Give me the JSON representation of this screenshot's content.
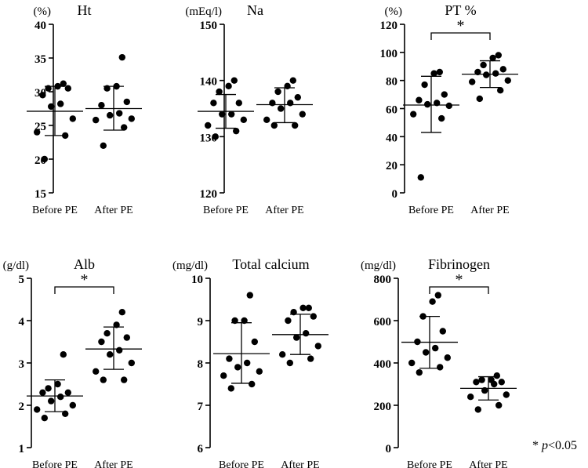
{
  "chart_data": [
    {
      "type": "scatter",
      "title": "Ht",
      "ylabel": "(%)",
      "categories": [
        "Before PE",
        "After PE"
      ],
      "ylim": [
        15,
        40
      ],
      "yticks": [
        "15",
        "20",
        "25",
        "30",
        "35",
        "40"
      ],
      "series": [
        {
          "name": "Before PE",
          "values": [
            20,
            23.5,
            24,
            26,
            27.8,
            28.2,
            29.5,
            30.5,
            30.5,
            30.8,
            31.2
          ],
          "mean": 27.1,
          "sd_low": 23.5,
          "sd_high": 30.8
        },
        {
          "name": "After PE",
          "values": [
            22,
            24.7,
            25.8,
            26,
            26.5,
            26.8,
            28,
            28.5,
            30.5,
            30.8,
            35.1
          ],
          "mean": 27.5,
          "sd_low": 24.3,
          "sd_high": 30.8
        }
      ],
      "significance": ""
    },
    {
      "type": "scatter",
      "title": "Na",
      "ylabel": "(mEq/l)",
      "categories": [
        "Before PE",
        "After PE"
      ],
      "ylim": [
        120,
        150
      ],
      "yticks": [
        "120",
        "130",
        "140",
        "150"
      ],
      "series": [
        {
          "name": "Before PE",
          "values": [
            130,
            131,
            132,
            133,
            134,
            134,
            136,
            136,
            138,
            139,
            140
          ],
          "mean": 134.5,
          "sd_low": 131.5,
          "sd_high": 137.5
        },
        {
          "name": "After PE",
          "values": [
            132,
            132,
            133,
            134,
            135,
            136,
            136,
            137,
            138,
            139,
            140
          ],
          "mean": 135.7,
          "sd_low": 132.5,
          "sd_high": 138.7
        }
      ],
      "significance": ""
    },
    {
      "type": "scatter",
      "title": "PT %",
      "ylabel": "(%)",
      "categories": [
        "Before PE",
        "After PE"
      ],
      "ylim": [
        0,
        120
      ],
      "yticks": [
        "0",
        "20",
        "40",
        "60",
        "80",
        "100",
        "120"
      ],
      "series": [
        {
          "name": "Before PE",
          "values": [
            11,
            53,
            56,
            62,
            63,
            64,
            66,
            70,
            77,
            85,
            86
          ],
          "mean": 62.5,
          "sd_low": 43,
          "sd_high": 83
        },
        {
          "name": "After PE",
          "values": [
            67,
            73,
            79,
            80,
            84,
            85,
            86,
            88,
            91,
            96,
            98
          ],
          "mean": 84.5,
          "sd_low": 75,
          "sd_high": 94
        }
      ],
      "significance": "*"
    },
    {
      "type": "scatter",
      "title": "Alb",
      "ylabel": "(g/dl)",
      "categories": [
        "Before PE",
        "After PE"
      ],
      "ylim": [
        1,
        5
      ],
      "yticks": [
        "1",
        "2",
        "3",
        "4",
        "5"
      ],
      "series": [
        {
          "name": "Before PE",
          "values": [
            1.7,
            1.8,
            1.9,
            2.0,
            2.1,
            2.2,
            2.3,
            2.3,
            2.4,
            2.5,
            3.2
          ],
          "mean": 2.22,
          "sd_low": 1.85,
          "sd_high": 2.6
        },
        {
          "name": "After PE",
          "values": [
            2.6,
            2.6,
            2.8,
            3.0,
            3.2,
            3.3,
            3.5,
            3.6,
            3.7,
            3.9,
            4.2
          ],
          "mean": 3.33,
          "sd_low": 2.85,
          "sd_high": 3.85
        }
      ],
      "significance": "*"
    },
    {
      "type": "scatter",
      "title": "Total calcium",
      "ylabel": "(mg/dl)",
      "categories": [
        "Before PE",
        "After PE"
      ],
      "ylim": [
        6,
        10
      ],
      "yticks": [
        "6",
        "7",
        "8",
        "9",
        "10"
      ],
      "series": [
        {
          "name": "Before PE",
          "values": [
            7.4,
            7.5,
            7.7,
            7.8,
            7.9,
            8.0,
            8.1,
            8.5,
            9.0,
            9.0,
            9.6
          ],
          "mean": 8.22,
          "sd_low": 7.52,
          "sd_high": 8.95
        },
        {
          "name": "After PE",
          "values": [
            8.0,
            8.1,
            8.2,
            8.4,
            8.6,
            8.7,
            9.0,
            9.1,
            9.2,
            9.3,
            9.3
          ],
          "mean": 8.67,
          "sd_low": 8.2,
          "sd_high": 9.15
        }
      ],
      "significance": ""
    },
    {
      "type": "scatter",
      "title": "Fibrinogen",
      "ylabel": "(mg/dl)",
      "categories": [
        "Before PE",
        "After PE"
      ],
      "ylim": [
        0,
        800
      ],
      "yticks": [
        "0",
        "200",
        "400",
        "600",
        "800"
      ],
      "series": [
        {
          "name": "Before PE",
          "values": [
            355,
            380,
            400,
            425,
            450,
            470,
            500,
            550,
            620,
            690,
            720
          ],
          "mean": 498,
          "sd_low": 375,
          "sd_high": 620
        },
        {
          "name": "After PE",
          "values": [
            180,
            200,
            240,
            250,
            270,
            300,
            310,
            310,
            320,
            320,
            340
          ],
          "mean": 280,
          "sd_low": 225,
          "sd_high": 335
        }
      ],
      "significance": "*"
    }
  ],
  "footnote": {
    "star": "*",
    "p": "p",
    "threshold": "<0.05"
  }
}
